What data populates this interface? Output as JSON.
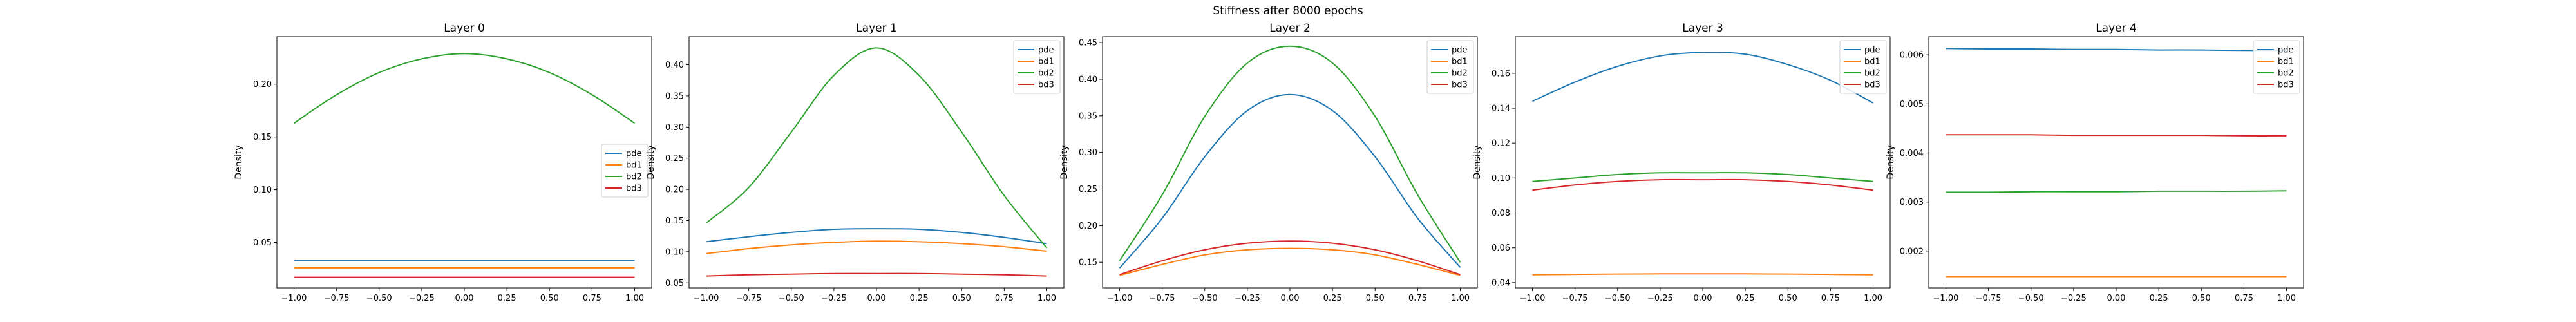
{
  "figure_title": "Stiffness after 8000 epochs",
  "colors": {
    "pde": "#1f77b4",
    "bd1": "#ff7f0e",
    "bd2": "#2ca02c",
    "bd3": "#d62728"
  },
  "chart_data": [
    {
      "type": "line",
      "title": "Layer 0",
      "xlabel": "",
      "ylabel": "Density",
      "xlim": [
        -1.1,
        1.1
      ],
      "ylim": [
        0.007,
        0.245
      ],
      "xticks": [
        "−1.00",
        "−0.75",
        "−0.50",
        "−0.25",
        "0.00",
        "0.25",
        "0.50",
        "0.75",
        "1.00"
      ],
      "xtick_values": [
        -1,
        -0.75,
        -0.5,
        -0.25,
        0,
        0.25,
        0.5,
        0.75,
        1
      ],
      "yticks": [
        "0.05",
        "0.10",
        "0.15",
        "0.20"
      ],
      "ytick_values": [
        0.05,
        0.1,
        0.15,
        0.2
      ],
      "legend": "center-right",
      "x": [
        -1,
        -0.75,
        -0.5,
        -0.25,
        0,
        0.25,
        0.5,
        0.75,
        1
      ],
      "series": [
        {
          "name": "pde",
          "values": [
            0.033,
            0.033,
            0.033,
            0.033,
            0.033,
            0.033,
            0.033,
            0.033,
            0.033
          ]
        },
        {
          "name": "bd1",
          "values": [
            0.026,
            0.026,
            0.026,
            0.026,
            0.026,
            0.026,
            0.026,
            0.026,
            0.026
          ]
        },
        {
          "name": "bd2",
          "values": [
            0.163,
            0.19,
            0.211,
            0.224,
            0.229,
            0.224,
            0.211,
            0.19,
            0.163
          ]
        },
        {
          "name": "bd3",
          "values": [
            0.017,
            0.017,
            0.017,
            0.017,
            0.017,
            0.017,
            0.017,
            0.017,
            0.017
          ]
        }
      ]
    },
    {
      "type": "line",
      "title": "Layer 1",
      "xlabel": "",
      "ylabel": "Density",
      "xlim": [
        -1.1,
        1.1
      ],
      "ylim": [
        0.042,
        0.445
      ],
      "xticks": [
        "−1.00",
        "−0.75",
        "−0.50",
        "−0.25",
        "0.00",
        "0.25",
        "0.50",
        "0.75",
        "1.00"
      ],
      "xtick_values": [
        -1,
        -0.75,
        -0.5,
        -0.25,
        0,
        0.25,
        0.5,
        0.75,
        1
      ],
      "yticks": [
        "0.05",
        "0.10",
        "0.15",
        "0.20",
        "0.25",
        "0.30",
        "0.35",
        "0.40"
      ],
      "ytick_values": [
        0.05,
        0.1,
        0.15,
        0.2,
        0.25,
        0.3,
        0.35,
        0.4
      ],
      "legend": "top-right",
      "x": [
        -1,
        -0.75,
        -0.5,
        -0.25,
        0,
        0.25,
        0.5,
        0.75,
        1
      ],
      "series": [
        {
          "name": "pde",
          "values": [
            0.116,
            0.124,
            0.131,
            0.136,
            0.137,
            0.136,
            0.131,
            0.123,
            0.113
          ]
        },
        {
          "name": "bd1",
          "values": [
            0.097,
            0.105,
            0.111,
            0.115,
            0.117,
            0.116,
            0.113,
            0.108,
            0.101
          ]
        },
        {
          "name": "bd2",
          "values": [
            0.146,
            0.203,
            0.292,
            0.383,
            0.427,
            0.383,
            0.292,
            0.19,
            0.106
          ]
        },
        {
          "name": "bd3",
          "values": [
            0.061,
            0.063,
            0.064,
            0.065,
            0.065,
            0.065,
            0.064,
            0.063,
            0.061
          ]
        }
      ]
    },
    {
      "type": "line",
      "title": "Layer 2",
      "xlabel": "",
      "ylabel": "Density",
      "xlim": [
        -1.1,
        1.1
      ],
      "ylim": [
        0.115,
        0.458
      ],
      "xticks": [
        "−1.00",
        "−0.75",
        "−0.50",
        "−0.25",
        "0.00",
        "0.25",
        "0.50",
        "0.75",
        "1.00"
      ],
      "xtick_values": [
        -1,
        -0.75,
        -0.5,
        -0.25,
        0,
        0.25,
        0.5,
        0.75,
        1
      ],
      "yticks": [
        "0.15",
        "0.20",
        "0.25",
        "0.30",
        "0.35",
        "0.40",
        "0.45"
      ],
      "ytick_values": [
        0.15,
        0.2,
        0.25,
        0.3,
        0.35,
        0.4,
        0.45
      ],
      "legend": "top-right",
      "x": [
        -1,
        -0.75,
        -0.5,
        -0.25,
        0,
        0.25,
        0.5,
        0.75,
        1
      ],
      "series": [
        {
          "name": "pde",
          "values": [
            0.142,
            0.21,
            0.294,
            0.357,
            0.379,
            0.357,
            0.294,
            0.21,
            0.143
          ]
        },
        {
          "name": "bd1",
          "values": [
            0.132,
            0.147,
            0.16,
            0.167,
            0.169,
            0.167,
            0.16,
            0.147,
            0.132
          ]
        },
        {
          "name": "bd2",
          "values": [
            0.152,
            0.242,
            0.349,
            0.422,
            0.445,
            0.422,
            0.349,
            0.242,
            0.15
          ]
        },
        {
          "name": "bd3",
          "values": [
            0.133,
            0.152,
            0.167,
            0.176,
            0.179,
            0.176,
            0.167,
            0.152,
            0.133
          ]
        }
      ]
    },
    {
      "type": "line",
      "title": "Layer 3",
      "xlabel": "",
      "ylabel": "Density",
      "xlim": [
        -1.1,
        1.1
      ],
      "ylim": [
        0.037,
        0.181
      ],
      "xticks": [
        "−1.00",
        "−0.75",
        "−0.50",
        "−0.25",
        "0.00",
        "0.25",
        "0.50",
        "0.75",
        "1.00"
      ],
      "xtick_values": [
        -1,
        -0.75,
        -0.5,
        -0.25,
        0,
        0.25,
        0.5,
        0.75,
        1
      ],
      "yticks": [
        "0.04",
        "0.06",
        "0.08",
        "0.10",
        "0.12",
        "0.14",
        "0.16"
      ],
      "ytick_values": [
        0.04,
        0.06,
        0.08,
        0.1,
        0.12,
        0.14,
        0.16
      ],
      "legend": "top-right",
      "x": [
        -1,
        -0.75,
        -0.5,
        -0.25,
        0,
        0.25,
        0.5,
        0.75,
        1
      ],
      "series": [
        {
          "name": "pde",
          "values": [
            0.144,
            0.155,
            0.164,
            0.17,
            0.172,
            0.171,
            0.165,
            0.156,
            0.143
          ]
        },
        {
          "name": "bd1",
          "values": [
            0.0445,
            0.0447,
            0.0449,
            0.045,
            0.045,
            0.045,
            0.0449,
            0.0447,
            0.0445
          ]
        },
        {
          "name": "bd2",
          "values": [
            0.098,
            0.1,
            0.102,
            0.103,
            0.103,
            0.103,
            0.102,
            0.1,
            0.098
          ]
        },
        {
          "name": "bd3",
          "values": [
            0.093,
            0.096,
            0.098,
            0.099,
            0.099,
            0.099,
            0.098,
            0.096,
            0.093
          ]
        }
      ]
    },
    {
      "type": "line",
      "title": "Layer 4",
      "xlabel": "",
      "ylabel": "Density",
      "xlim": [
        -1.1,
        1.1
      ],
      "ylim": [
        0.00125,
        0.00637
      ],
      "xticks": [
        "−1.00",
        "−0.75",
        "−0.50",
        "−0.25",
        "0.00",
        "0.25",
        "0.50",
        "0.75",
        "1.00"
      ],
      "xtick_values": [
        -1,
        -0.75,
        -0.5,
        -0.25,
        0,
        0.25,
        0.5,
        0.75,
        1
      ],
      "yticks": [
        "0.002",
        "0.003",
        "0.004",
        "0.005",
        "0.006"
      ],
      "ytick_values": [
        0.002,
        0.003,
        0.004,
        0.005,
        0.006
      ],
      "legend": "top-right",
      "x": [
        -1,
        -0.75,
        -0.5,
        -0.25,
        0,
        0.25,
        0.5,
        0.75,
        1
      ],
      "series": [
        {
          "name": "pde",
          "values": [
            0.00613,
            0.00612,
            0.00612,
            0.00611,
            0.00611,
            0.0061,
            0.0061,
            0.00609,
            0.00609
          ]
        },
        {
          "name": "bd1",
          "values": [
            0.00148,
            0.00148,
            0.00148,
            0.00148,
            0.00148,
            0.00148,
            0.00148,
            0.00148,
            0.00148
          ]
        },
        {
          "name": "bd2",
          "values": [
            0.0032,
            0.0032,
            0.00321,
            0.00321,
            0.00321,
            0.00322,
            0.00322,
            0.00322,
            0.00323
          ]
        },
        {
          "name": "bd3",
          "values": [
            0.00437,
            0.00437,
            0.00437,
            0.00436,
            0.00436,
            0.00436,
            0.00436,
            0.00435,
            0.00435
          ]
        }
      ]
    }
  ]
}
